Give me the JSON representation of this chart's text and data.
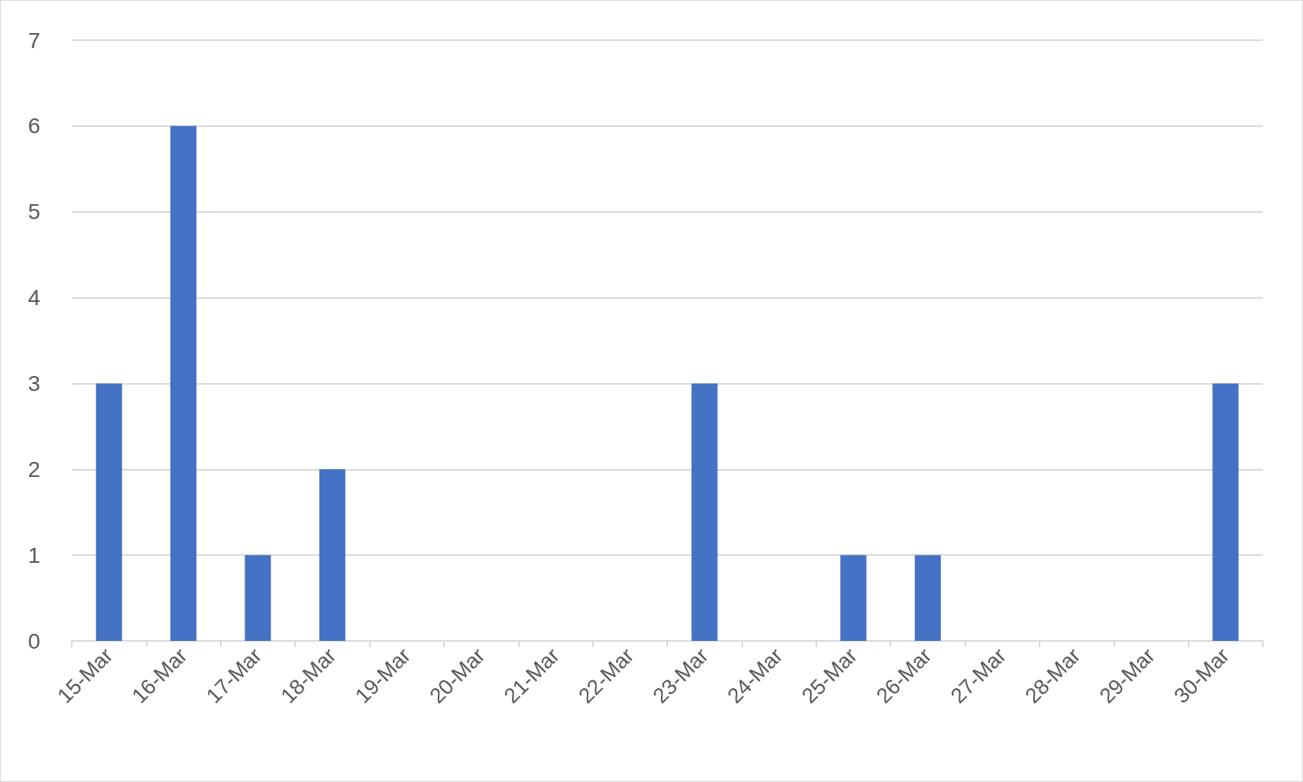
{
  "chart_data": {
    "type": "bar",
    "categories": [
      "15-Mar",
      "16-Mar",
      "17-Mar",
      "18-Mar",
      "19-Mar",
      "20-Mar",
      "21-Mar",
      "22-Mar",
      "23-Mar",
      "24-Mar",
      "25-Mar",
      "26-Mar",
      "27-Mar",
      "28-Mar",
      "29-Mar",
      "30-Mar"
    ],
    "values": [
      3,
      6,
      1,
      2,
      0,
      0,
      0,
      0,
      3,
      0,
      1,
      1,
      0,
      0,
      0,
      3
    ],
    "color": "#4472c4",
    "ylim": [
      0,
      7
    ],
    "yticks": [
      0,
      1,
      2,
      3,
      4,
      5,
      6,
      7
    ],
    "grid": "y"
  }
}
